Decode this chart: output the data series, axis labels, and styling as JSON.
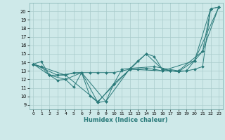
{
  "background_color": "#cee9e9",
  "grid_color": "#aacccc",
  "line_color": "#2a7a7a",
  "xlabel": "Humidex (Indice chaleur)",
  "xlim": [
    -0.5,
    23.5
  ],
  "ylim": [
    8.5,
    21.0
  ],
  "yticks": [
    9,
    10,
    11,
    12,
    13,
    14,
    15,
    16,
    17,
    18,
    19,
    20
  ],
  "xticks": [
    0,
    1,
    2,
    3,
    4,
    5,
    6,
    7,
    8,
    9,
    10,
    11,
    12,
    13,
    14,
    15,
    16,
    17,
    18,
    19,
    20,
    21,
    22,
    23
  ],
  "series1": [
    [
      0,
      13.8
    ],
    [
      1,
      14.1
    ],
    [
      2,
      12.5
    ],
    [
      3,
      11.9
    ],
    [
      4,
      12.0
    ],
    [
      5,
      11.1
    ],
    [
      6,
      12.8
    ],
    [
      7,
      10.1
    ],
    [
      8,
      9.3
    ],
    [
      9,
      9.4
    ],
    [
      10,
      11.5
    ],
    [
      11,
      13.2
    ],
    [
      12,
      13.3
    ],
    [
      13,
      14.2
    ],
    [
      14,
      15.0
    ],
    [
      15,
      14.7
    ],
    [
      16,
      13.2
    ],
    [
      17,
      13.0
    ],
    [
      18,
      12.9
    ],
    [
      19,
      13.0
    ],
    [
      20,
      14.2
    ],
    [
      21,
      15.3
    ],
    [
      22,
      20.3
    ],
    [
      23,
      20.5
    ]
  ],
  "series2": [
    [
      0,
      13.8
    ],
    [
      1,
      13.5
    ],
    [
      2,
      12.5
    ],
    [
      3,
      12.5
    ],
    [
      4,
      12.5
    ],
    [
      5,
      12.8
    ],
    [
      6,
      12.8
    ],
    [
      7,
      12.8
    ],
    [
      8,
      12.8
    ],
    [
      9,
      12.8
    ],
    [
      10,
      12.8
    ],
    [
      11,
      13.0
    ],
    [
      12,
      13.2
    ],
    [
      13,
      13.2
    ],
    [
      14,
      13.3
    ],
    [
      15,
      13.2
    ],
    [
      16,
      13.0
    ],
    [
      17,
      13.0
    ],
    [
      18,
      13.0
    ],
    [
      19,
      13.0
    ],
    [
      20,
      13.2
    ],
    [
      21,
      13.5
    ],
    [
      22,
      20.3
    ],
    [
      23,
      20.5
    ]
  ],
  "series3": [
    [
      0,
      13.8
    ],
    [
      2,
      12.5
    ],
    [
      4,
      12.0
    ],
    [
      6,
      12.8
    ],
    [
      8,
      9.3
    ],
    [
      10,
      11.5
    ],
    [
      12,
      13.2
    ],
    [
      14,
      15.0
    ],
    [
      16,
      13.2
    ],
    [
      18,
      12.9
    ],
    [
      20,
      14.2
    ],
    [
      22,
      20.3
    ]
  ],
  "series4": [
    [
      0,
      13.8
    ],
    [
      3,
      12.5
    ],
    [
      6,
      12.8
    ],
    [
      9,
      9.4
    ],
    [
      12,
      13.3
    ],
    [
      15,
      13.5
    ],
    [
      18,
      13.0
    ],
    [
      21,
      15.3
    ],
    [
      23,
      20.5
    ]
  ],
  "series5": [
    [
      0,
      13.8
    ],
    [
      4,
      12.5
    ],
    [
      8,
      9.4
    ],
    [
      12,
      13.2
    ],
    [
      16,
      13.0
    ],
    [
      20,
      14.2
    ],
    [
      23,
      20.5
    ]
  ]
}
